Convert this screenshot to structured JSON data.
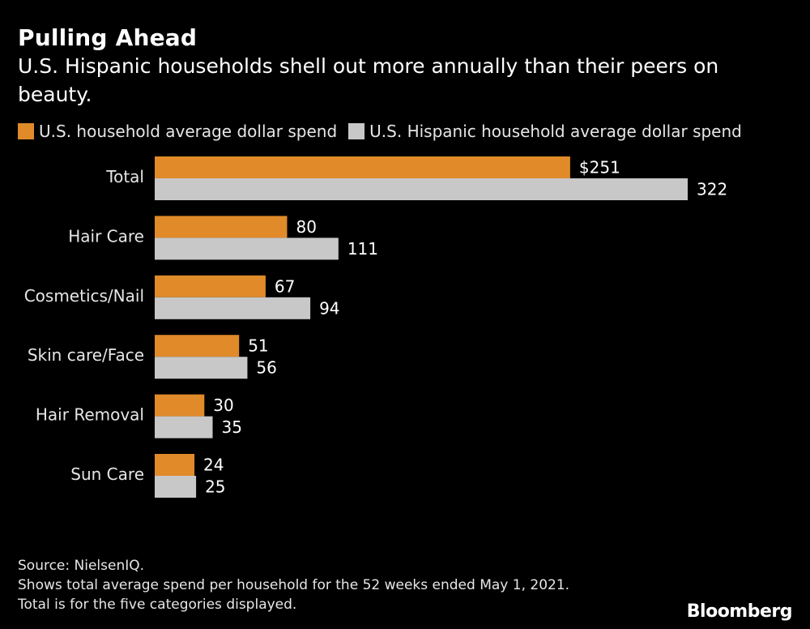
{
  "header": {
    "title": "Pulling Ahead",
    "subtitle": "U.S. Hispanic households shell out more annually than their peers on beauty."
  },
  "colors": {
    "background": "#000000",
    "series_us": "#e08a2a",
    "series_hispanic": "#c8c8c8"
  },
  "chart_data": {
    "type": "bar",
    "orientation": "horizontal",
    "title": "Pulling Ahead",
    "subtitle": "U.S. Hispanic households shell out more annually than their peers on beauty.",
    "categories": [
      "Total",
      "Hair Care",
      "Cosmetics/Nail",
      "Skin care/Face",
      "Hair Removal",
      "Sun Care"
    ],
    "series": [
      {
        "name": "U.S. household average dollar spend",
        "color": "#e08a2a",
        "values": [
          251,
          80,
          67,
          51,
          30,
          24
        ],
        "labels": [
          "$251",
          "80",
          "67",
          "51",
          "30",
          "24"
        ]
      },
      {
        "name": "U.S. Hispanic household average dollar spend",
        "color": "#c8c8c8",
        "values": [
          322,
          111,
          94,
          56,
          35,
          25
        ],
        "labels": [
          "322",
          "111",
          "94",
          "56",
          "35",
          "25"
        ]
      }
    ],
    "xlim": [
      0,
      322
    ],
    "grid": false,
    "legend": "top-left"
  },
  "footer": {
    "source": "Source: NielsenIQ.",
    "note1": "Shows total average spend per household for the 52 weeks ended May 1, 2021.",
    "note2": "Total is for the five categories displayed.",
    "brand": "Bloomberg"
  }
}
